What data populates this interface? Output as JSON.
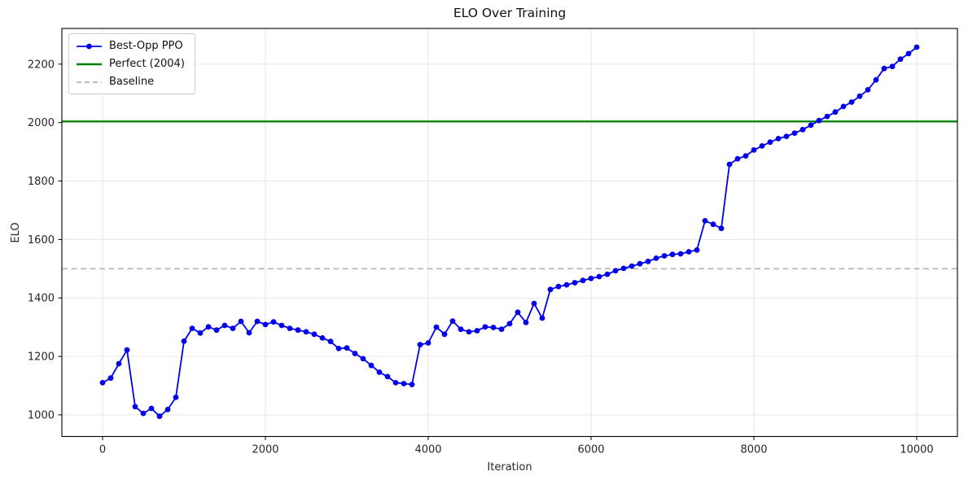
{
  "chart_data": {
    "type": "line",
    "title": "ELO Over Training",
    "xlabel": "Iteration",
    "ylabel": "ELO",
    "xlim": [
      -500,
      10500
    ],
    "ylim": [
      926,
      2322
    ],
    "xticks": [
      0,
      2000,
      4000,
      6000,
      8000,
      10000
    ],
    "yticks": [
      1000,
      1200,
      1400,
      1600,
      1800,
      2000,
      2200
    ],
    "grid": true,
    "legend_position": "upper-left",
    "series": [
      {
        "name": "Best-Opp PPO",
        "color": "#0000ee",
        "marker": "circle",
        "x": [
          0,
          100,
          200,
          300,
          400,
          500,
          600,
          700,
          800,
          900,
          1000,
          1100,
          1200,
          1300,
          1400,
          1500,
          1600,
          1700,
          1800,
          1900,
          2000,
          2100,
          2200,
          2300,
          2400,
          2500,
          2600,
          2700,
          2800,
          2900,
          3000,
          3100,
          3200,
          3300,
          3400,
          3500,
          3600,
          3700,
          3800,
          3900,
          4000,
          4100,
          4200,
          4300,
          4400,
          4500,
          4600,
          4700,
          4800,
          4900,
          5000,
          5100,
          5200,
          5300,
          5400,
          5500,
          5600,
          5700,
          5800,
          5900,
          6000,
          6100,
          6200,
          6300,
          6400,
          6500,
          6600,
          6700,
          6800,
          6900,
          7000,
          7100,
          7200,
          7300,
          7400,
          7500,
          7600,
          7700,
          7800,
          7900,
          8000,
          8100,
          8200,
          8300,
          8400,
          8500,
          8600,
          8700,
          8800,
          8900,
          9000,
          9100,
          9200,
          9300,
          9400,
          9500,
          9600,
          9700,
          9800,
          9900,
          10000
        ],
        "values": [
          1110,
          1126,
          1175,
          1222,
          1028,
          1005,
          1022,
          995,
          1018,
          1060,
          1252,
          1296,
          1280,
          1301,
          1290,
          1306,
          1296,
          1320,
          1281,
          1320,
          1309,
          1318,
          1306,
          1296,
          1290,
          1284,
          1276,
          1263,
          1251,
          1227,
          1229,
          1210,
          1192,
          1169,
          1146,
          1131,
          1110,
          1107,
          1104,
          1240,
          1246,
          1300,
          1276,
          1321,
          1293,
          1284,
          1288,
          1301,
          1299,
          1293,
          1312,
          1351,
          1316,
          1381,
          1331,
          1429,
          1439,
          1445,
          1452,
          1460,
          1467,
          1473,
          1481,
          1493,
          1501,
          1509,
          1517,
          1525,
          1536,
          1544,
          1549,
          1551,
          1558,
          1564,
          1664,
          1652,
          1638,
          1857,
          1876,
          1886,
          1906,
          1920,
          1933,
          1945,
          1953,
          1964,
          1976,
          1991,
          2007,
          2021,
          2036,
          2055,
          2070,
          2090,
          2112,
          2146,
          2185,
          2192,
          2217,
          2236,
          2258
        ]
      }
    ],
    "hlines": [
      {
        "name": "Perfect (2004)",
        "y": 2004,
        "color": "#008000",
        "style": "solid",
        "width": 2.2
      },
      {
        "name": "Baseline",
        "y": 1500,
        "color": "#b3b3b3",
        "style": "dashed",
        "width": 1.6
      }
    ],
    "legend": {
      "items": [
        {
          "label": "Best-Opp PPO",
          "swatch": "line-marker",
          "color": "#0000ee"
        },
        {
          "label": "Perfect (2004)",
          "swatch": "line",
          "color": "#008000"
        },
        {
          "label": "Baseline",
          "swatch": "dashed",
          "color": "#b3b3b3"
        }
      ]
    }
  }
}
